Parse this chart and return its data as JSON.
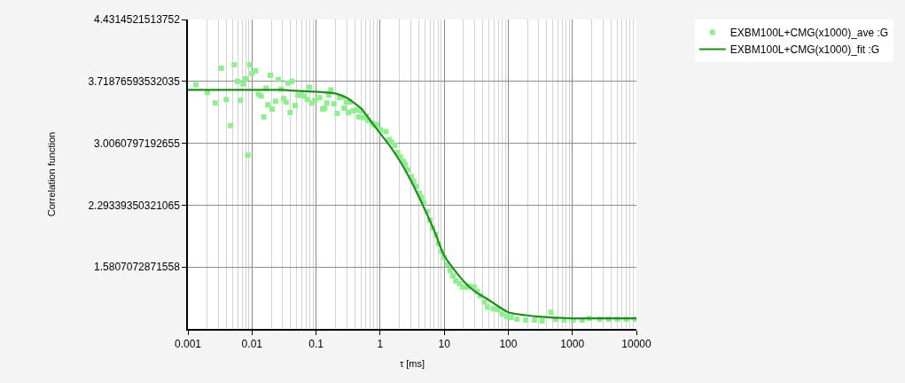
{
  "chart_data": {
    "type": "scatter",
    "xlabel": "τ [ms]",
    "ylabel": "Correlation function",
    "log": "x",
    "grid": true,
    "legend": "top right",
    "xlim": [
      0.001,
      10000
    ],
    "xticks": [
      0.001,
      0.01,
      0.1,
      1,
      10,
      100,
      1000,
      10000
    ],
    "ylim": [
      0.86802107110095,
      4.4314521513752
    ],
    "yticks": [
      1.5807072871558,
      2.29339350321065,
      3.0060797192655,
      3.71876593532035,
      4.4314521513752
    ],
    "series": [
      {
        "name": "EXBM100L+CMG(x1000)_ave :G",
        "marker": "square",
        "color": "#90ee90",
        "x": [
          0.00133,
          0.00201,
          0.00266,
          0.00332,
          0.00397,
          0.00462,
          0.00529,
          0.00595,
          0.00661,
          0.00727,
          0.00793,
          0.00863,
          0.0092,
          0.01,
          0.0114,
          0.0126,
          0.0139,
          0.0153,
          0.0166,
          0.0177,
          0.0193,
          0.0206,
          0.0234,
          0.0258,
          0.0286,
          0.0312,
          0.034,
          0.0365,
          0.0394,
          0.0419,
          0.0472,
          0.0524,
          0.0589,
          0.0664,
          0.073,
          0.0785,
          0.0855,
          0.0959,
          0.114,
          0.127,
          0.136,
          0.147,
          0.157,
          0.17,
          0.19,
          0.213,
          0.23,
          0.253,
          0.274,
          0.296,
          0.319,
          0.34,
          0.377,
          0.429,
          0.467,
          0.502,
          0.553,
          0.603,
          0.656,
          0.753,
          0.803,
          0.883,
          1.01,
          1.23,
          1.38,
          1.5,
          1.69,
          1.88,
          2.07,
          2.3,
          2.47,
          2.69,
          3.06,
          3.33,
          3.7,
          4.11,
          4.44,
          4.77,
          5.37,
          5.97,
          6.57,
          7.39,
          8.2,
          9.12,
          10.0,
          11.2,
          12.4,
          13.7,
          15.2,
          17.3,
          19.4,
          22.5,
          25.6,
          29.3,
          32.6,
          36.3,
          42.6,
          47.3,
          58.6,
          68.7,
          80.5,
          94.4,
          111,
          137,
          188,
          258,
          337,
          464,
          544,
          748,
          1030,
          1420,
          1840,
          2670,
          3680,
          5060,
          6950,
          9550
        ],
        "values": [
          3.68,
          3.59,
          3.47,
          3.87,
          3.51,
          3.21,
          3.91,
          3.72,
          3.5,
          3.69,
          3.75,
          2.87,
          3.91,
          3.81,
          3.84,
          3.57,
          3.55,
          3.31,
          3.64,
          3.45,
          3.79,
          3.4,
          3.49,
          3.74,
          3.63,
          3.52,
          3.48,
          3.7,
          3.36,
          3.72,
          3.44,
          3.56,
          3.56,
          3.55,
          3.51,
          3.65,
          3.47,
          3.5,
          3.53,
          3.4,
          3.41,
          3.47,
          3.56,
          3.62,
          3.46,
          3.35,
          3.53,
          3.54,
          3.41,
          3.48,
          3.36,
          3.48,
          3.38,
          3.39,
          3.31,
          3.38,
          3.3,
          3.32,
          3.27,
          3.24,
          3.22,
          3.22,
          3.16,
          3.14,
          3.05,
          3.02,
          2.98,
          2.9,
          2.85,
          2.8,
          2.76,
          2.7,
          2.62,
          2.57,
          2.51,
          2.43,
          2.38,
          2.32,
          2.22,
          2.12,
          2.03,
          1.95,
          1.85,
          1.76,
          1.69,
          1.61,
          1.54,
          1.48,
          1.42,
          1.39,
          1.35,
          1.35,
          1.36,
          1.35,
          1.3,
          1.25,
          1.18,
          1.12,
          1.1,
          1.09,
          1.04,
          1.01,
          1.0,
          0.98,
          0.97,
          0.97,
          0.96,
          1.06,
          0.98,
          0.97,
          0.97,
          0.97,
          0.99,
          0.98,
          0.98,
          0.98,
          0.98,
          0.98
        ]
      },
      {
        "name": "EXBM100L+CMG(x1000)_fit :G",
        "type": "line",
        "marker": "none",
        "line_style": "solid",
        "color": "#228b22",
        "x": [
          0.001,
          0.01,
          0.03,
          0.05,
          0.1,
          0.2,
          0.3,
          0.5,
          0.7,
          1,
          1.5,
          2,
          3,
          5,
          7,
          10,
          20,
          30,
          50,
          100,
          300,
          1000,
          10000
        ],
        "values": [
          3.62,
          3.62,
          3.62,
          3.61,
          3.6,
          3.58,
          3.53,
          3.41,
          3.27,
          3.12,
          2.95,
          2.81,
          2.58,
          2.24,
          2.0,
          1.71,
          1.42,
          1.3,
          1.2,
          1.06,
          1.01,
          0.99,
          0.99
        ]
      }
    ]
  }
}
